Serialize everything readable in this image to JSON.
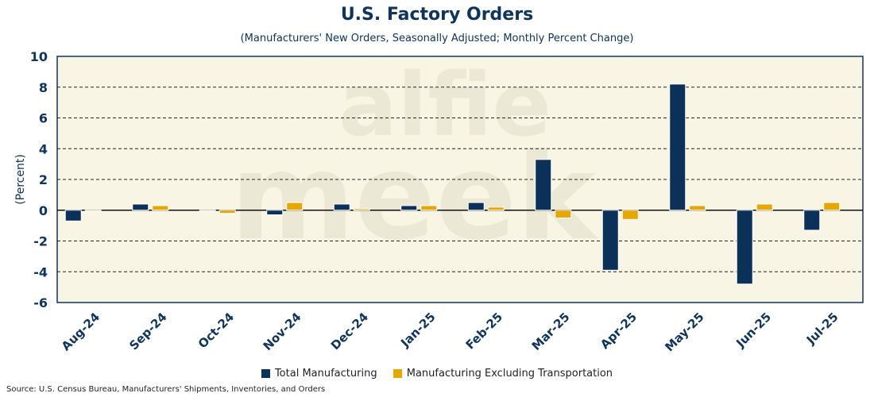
{
  "chart_data": {
    "type": "bar",
    "title": "U.S. Factory Orders",
    "subtitle": "(Manufacturers' New Orders, Seasonally Adjusted; Monthly Percent Change)",
    "ylabel": "(Percent)",
    "xlabel": "",
    "ylim": [
      -6,
      10
    ],
    "yticks": [
      -6,
      -4,
      -2,
      0,
      2,
      4,
      6,
      8,
      10
    ],
    "grid": true,
    "legend_position": "bottom",
    "categories": [
      "Aug-24",
      "Sep-24",
      "Oct-24",
      "Nov-24",
      "Dec-24",
      "Jan-25",
      "Feb-25",
      "Mar-25",
      "Apr-25",
      "May-25",
      "Jun-25",
      "Jul-25"
    ],
    "series": [
      {
        "name": "Total Manufacturing",
        "color": "#0b3158",
        "values": [
          -0.7,
          0.4,
          0.0,
          -0.3,
          0.4,
          0.3,
          0.5,
          3.3,
          -3.9,
          8.2,
          -4.8,
          -1.3
        ]
      },
      {
        "name": "Manufacturing Excluding Transportation",
        "color": "#e6a700",
        "values": [
          0.0,
          0.3,
          -0.2,
          0.5,
          0.1,
          0.3,
          0.2,
          -0.5,
          -0.6,
          0.3,
          0.4,
          0.5
        ]
      }
    ],
    "source": "Source: U.S. Census Bureau, Manufacturers' Shipments, Inventories, and Orders"
  }
}
